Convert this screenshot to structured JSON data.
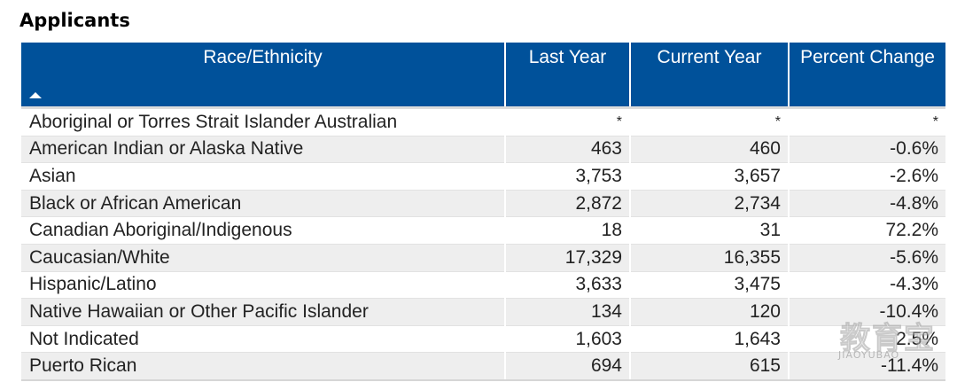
{
  "title": "Applicants",
  "table": {
    "headers": [
      "Race/Ethnicity",
      "Last Year",
      "Current Year",
      "Percent Change"
    ],
    "rows": [
      [
        "Aboriginal or Torres Strait Islander Australian",
        "*",
        "*",
        "*"
      ],
      [
        "American Indian or Alaska Native",
        "463",
        "460",
        "-0.6%"
      ],
      [
        "Asian",
        "3,753",
        "3,657",
        "-2.6%"
      ],
      [
        "Black or African American",
        "2,872",
        "2,734",
        "-4.8%"
      ],
      [
        "Canadian Aboriginal/Indigenous",
        "18",
        "31",
        "72.2%"
      ],
      [
        "Caucasian/White",
        "17,329",
        "16,355",
        "-5.6%"
      ],
      [
        "Hispanic/Latino",
        "3,633",
        "3,475",
        "-4.3%"
      ],
      [
        "Native Hawaiian or Other Pacific Islander",
        "134",
        "120",
        "-10.4%"
      ],
      [
        "Not Indicated",
        "1,603",
        "1,643",
        "2.5%"
      ],
      [
        "Puerto Rican",
        "694",
        "615",
        "-11.4%"
      ]
    ]
  },
  "sort_icon": "triangle-up-icon",
  "colors": {
    "header_bg": "#00519a",
    "header_text": "#ffffff",
    "row_alt_bg": "#eeeeee"
  },
  "watermark": {
    "main": "教育宝",
    "sub": "JIAOYUBAO"
  }
}
